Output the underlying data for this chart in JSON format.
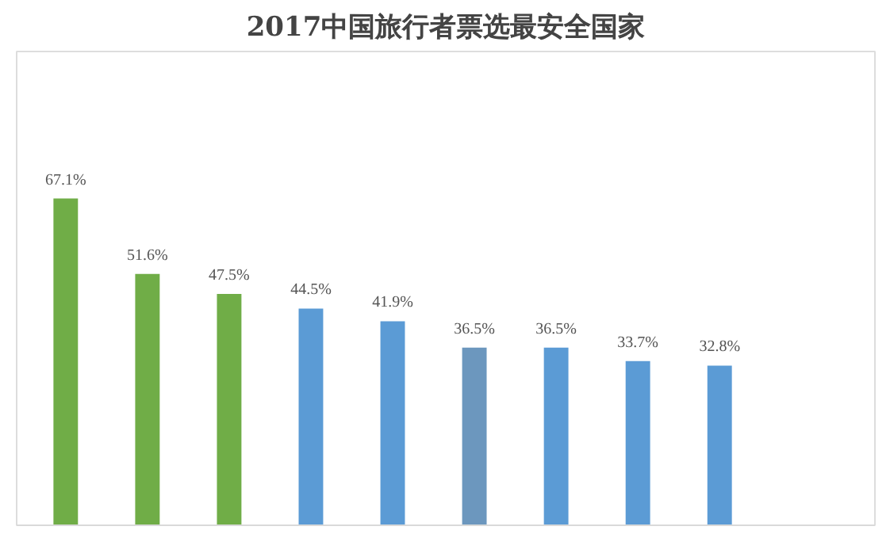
{
  "chart_data": {
    "type": "bar",
    "title": "2017中国旅行者票选最安全国家",
    "categories": [
      null,
      null,
      null,
      null,
      null,
      null,
      null,
      null,
      null
    ],
    "values": [
      67.1,
      51.6,
      47.5,
      44.5,
      41.9,
      36.5,
      36.5,
      33.7,
      32.8
    ],
    "colors": [
      "#70ad47",
      "#70ad47",
      "#70ad47",
      "#5b9bd5",
      "#5b9bd5",
      "#6c97be",
      "#5b9bd5",
      "#5b9bd5",
      "#5b9bd5"
    ],
    "value_labels": [
      "67.1%",
      "51.6%",
      "47.5%",
      "44.5%",
      "41.9%",
      "36.5%",
      "36.5%",
      "33.7%",
      "32.8%"
    ]
  }
}
